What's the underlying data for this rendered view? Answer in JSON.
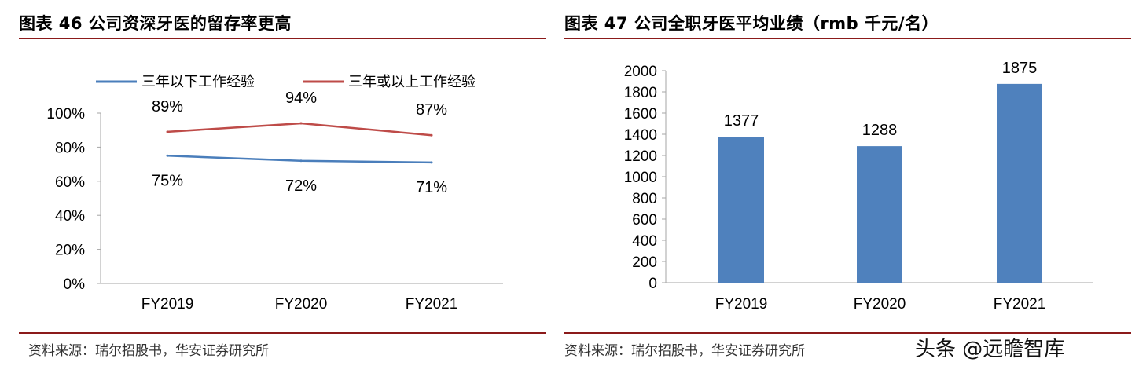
{
  "left": {
    "title": "图表 46 公司资深牙医的留存率更高",
    "source": "资料来源：瑞尔招股书，华安证券研究所"
  },
  "right": {
    "title": "图表 47 公司全职牙医平均业绩（rmb 千元/名）",
    "source": "资料来源：瑞尔招股书，华安证券研究所",
    "watermark": "头条 @远瞻智库"
  },
  "chart_data": [
    {
      "type": "line",
      "title": "",
      "xlabel": "",
      "ylabel": "",
      "categories": [
        "FY2019",
        "FY2020",
        "FY2021"
      ],
      "ylim": [
        0,
        100
      ],
      "yticks": [
        "0%",
        "20%",
        "40%",
        "60%",
        "80%",
        "100%"
      ],
      "legend_position": "top",
      "grid": false,
      "series": [
        {
          "name": "三年以下工作经验",
          "values": [
            75,
            72,
            71
          ],
          "labels": [
            "75%",
            "72%",
            "71%"
          ],
          "color": "#4a7ebb"
        },
        {
          "name": "三年或以上工作经验",
          "values": [
            89,
            94,
            87
          ],
          "labels": [
            "89%",
            "94%",
            "87%"
          ],
          "color": "#be4b48"
        }
      ]
    },
    {
      "type": "bar",
      "title": "",
      "xlabel": "",
      "ylabel": "",
      "categories": [
        "FY2019",
        "FY2020",
        "FY2021"
      ],
      "values": [
        1377,
        1288,
        1875
      ],
      "labels": [
        "1377",
        "1288",
        "1875"
      ],
      "ylim": [
        0,
        2000
      ],
      "yticks": [
        "0",
        "200",
        "400",
        "600",
        "800",
        "1000",
        "1200",
        "1400",
        "1600",
        "1800",
        "2000"
      ],
      "grid": false,
      "color": "#4f81bd"
    }
  ]
}
